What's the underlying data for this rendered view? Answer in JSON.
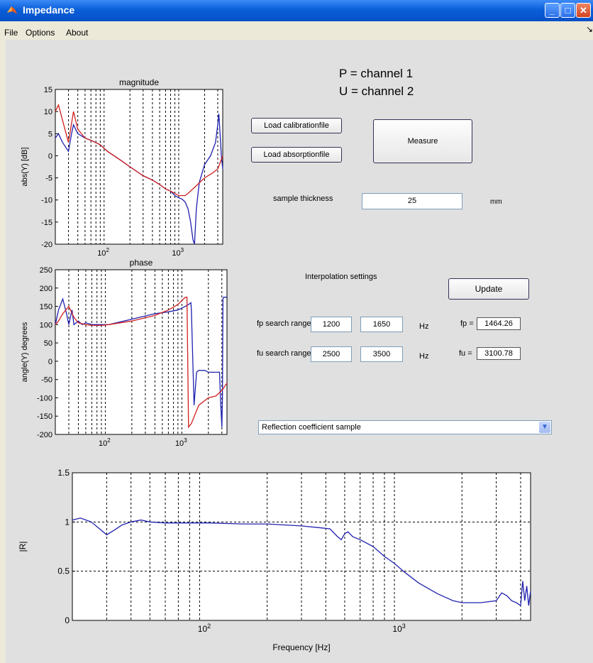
{
  "window": {
    "title": "Impedance"
  },
  "menu": [
    "File",
    "Options",
    "About"
  ],
  "channels": {
    "p": "P = channel 1",
    "u": "U = channel 2"
  },
  "buttons": {
    "load_calibration": "Load calibrationfile",
    "load_absorption": "Load absorptionfile",
    "measure": "Measure",
    "update": "Update"
  },
  "sample": {
    "label": "sample thickness",
    "value": "25",
    "unit": "mm"
  },
  "interpolation": {
    "title": "Interpolation settings",
    "fp": {
      "label": "fp search range",
      "min": "1200",
      "max": "1650",
      "unit": "Hz",
      "result_label": "fp =",
      "result": "1464.26"
    },
    "fu": {
      "label": "fu search range",
      "min": "2500",
      "max": "3500",
      "unit": "Hz",
      "result_label": "fu =",
      "result": "3100.78"
    }
  },
  "dropdown": {
    "selected": "Reflection coefficient sample"
  },
  "colors": {
    "series1": "#2020b0",
    "series2": "#d02020"
  },
  "chart_data": [
    {
      "type": "line",
      "title": "magnitude",
      "xlabel": "",
      "ylabel": "abs(Y) [dB]",
      "xscale": "log",
      "xlim": [
        20,
        3500
      ],
      "ylim": [
        -20,
        15
      ],
      "yticks": [
        15,
        10,
        5,
        0,
        -5,
        -10,
        -15,
        -20
      ],
      "xtick_labels": [
        {
          "base": "10",
          "exp": "2",
          "value": 100
        },
        {
          "base": "10",
          "exp": "3",
          "value": 1000
        }
      ],
      "vgrid": [
        30,
        40,
        50,
        60,
        70,
        80,
        90,
        200,
        300,
        400,
        500,
        600,
        700,
        800,
        900,
        2000,
        3000
      ],
      "series": [
        {
          "x": [
            20,
            22,
            25,
            30,
            33,
            35,
            40,
            50,
            60,
            80,
            100,
            150,
            200,
            300,
            400,
            500,
            600,
            700,
            800,
            900,
            1000,
            1100,
            1200,
            1300,
            1400,
            1464,
            1550,
            1700,
            2000,
            2400,
            2800,
            3000,
            3100,
            3200,
            3350,
            3500
          ],
          "y": [
            4,
            5,
            3,
            1,
            5,
            7,
            5,
            4,
            3.5,
            2.5,
            1,
            -1,
            -2.5,
            -4.5,
            -5.5,
            -6.5,
            -7.5,
            -8,
            -9,
            -9.5,
            -9.8,
            -10.5,
            -12,
            -15,
            -19,
            -20,
            -12,
            -6,
            -2,
            0,
            3,
            7,
            9.5,
            6,
            0,
            -3
          ]
        },
        {
          "x": [
            20,
            22,
            25,
            30,
            35,
            40,
            50,
            60,
            80,
            100,
            150,
            200,
            300,
            400,
            500,
            600,
            700,
            800,
            900,
            1000,
            1100,
            1200,
            1500,
            2000,
            2500,
            3000,
            3500
          ],
          "y": [
            10,
            11.5,
            8,
            3,
            10,
            6,
            4,
            3.5,
            2.5,
            1,
            -1,
            -2.5,
            -4.5,
            -5.5,
            -6.5,
            -7.5,
            -8,
            -8.5,
            -9,
            -9,
            -9,
            -8.5,
            -7,
            -5,
            -4,
            -3,
            0
          ]
        }
      ]
    },
    {
      "type": "line",
      "title": "phase",
      "xlabel": "",
      "ylabel": "angle(Y) degrees",
      "xscale": "log",
      "xlim": [
        20,
        3500
      ],
      "ylim": [
        -200,
        250
      ],
      "yticks": [
        250,
        200,
        150,
        100,
        50,
        0,
        -50,
        -100,
        -150,
        -200
      ],
      "xtick_labels": [
        {
          "base": "10",
          "exp": "2",
          "value": 100
        },
        {
          "base": "10",
          "exp": "3",
          "value": 1000
        }
      ],
      "vgrid": [
        30,
        40,
        50,
        60,
        70,
        80,
        90,
        200,
        300,
        400,
        500,
        600,
        700,
        800,
        900,
        2000,
        3000
      ],
      "series": [
        {
          "x": [
            20,
            22,
            25,
            28,
            30,
            33,
            35,
            40,
            45,
            50,
            60,
            80,
            100,
            200,
            400,
            600,
            800,
            1000,
            1100,
            1180,
            1200,
            1300,
            1400,
            1500,
            1600,
            1800,
            2000,
            2500,
            2800,
            2900,
            3000,
            3050,
            3100,
            3150,
            3300,
            3500
          ],
          "y": [
            100,
            140,
            170,
            130,
            100,
            140,
            100,
            110,
            100,
            105,
            100,
            100,
            100,
            115,
            130,
            135,
            140,
            150,
            155,
            160,
            140,
            -120,
            -30,
            -25,
            -25,
            -25,
            -30,
            -30,
            -30,
            -120,
            -180,
            -100,
            170,
            175,
            175,
            175
          ]
        },
        {
          "x": [
            20,
            22,
            25,
            30,
            35,
            40,
            50,
            60,
            80,
            100,
            200,
            400,
            600,
            800,
            1000,
            1050,
            1100,
            1200,
            1500,
            2000,
            2500,
            3000,
            3500
          ],
          "y": [
            100,
            110,
            130,
            150,
            120,
            105,
            100,
            98,
            98,
            100,
            110,
            125,
            140,
            155,
            175,
            175,
            -180,
            -170,
            -120,
            -100,
            -95,
            -80,
            -60
          ]
        }
      ]
    },
    {
      "type": "line",
      "title": "",
      "xlabel": "Frequency [Hz]",
      "ylabel": "|R|",
      "xscale": "log",
      "xlim": [
        20,
        4500
      ],
      "ylim": [
        0,
        1.5
      ],
      "yticks": [
        "1.5",
        "1",
        "0.5",
        "0"
      ],
      "xtick_labels": [
        {
          "base": "10",
          "exp": "2",
          "value": 100
        },
        {
          "base": "10",
          "exp": "3",
          "value": 1000
        }
      ],
      "vgrid": [
        30,
        40,
        50,
        60,
        70,
        80,
        90,
        200,
        300,
        400,
        500,
        600,
        700,
        800,
        900,
        2000,
        3000,
        4000
      ],
      "hgrid": [
        0.5,
        1
      ],
      "series": [
        {
          "x": [
            20,
            22,
            25,
            28,
            30,
            33,
            36,
            40,
            45,
            50,
            60,
            80,
            100,
            150,
            200,
            300,
            380,
            420,
            460,
            480,
            500,
            520,
            550,
            600,
            700,
            800,
            900,
            1000,
            1200,
            1500,
            1800,
            2000,
            2500,
            3000,
            3200,
            3400,
            3600,
            3800,
            4000,
            4100,
            4200,
            4300,
            4400,
            4500
          ],
          "y": [
            1.02,
            1.04,
            1.0,
            0.92,
            0.87,
            0.92,
            0.97,
            1.0,
            1.02,
            1.0,
            0.99,
            0.99,
            0.99,
            0.98,
            0.98,
            0.96,
            0.94,
            0.93,
            0.85,
            0.82,
            0.88,
            0.9,
            0.85,
            0.82,
            0.75,
            0.65,
            0.58,
            0.5,
            0.38,
            0.27,
            0.2,
            0.18,
            0.18,
            0.2,
            0.28,
            0.25,
            0.2,
            0.18,
            0.15,
            0.4,
            0.2,
            0.35,
            0.15,
            0.3
          ]
        }
      ]
    }
  ]
}
